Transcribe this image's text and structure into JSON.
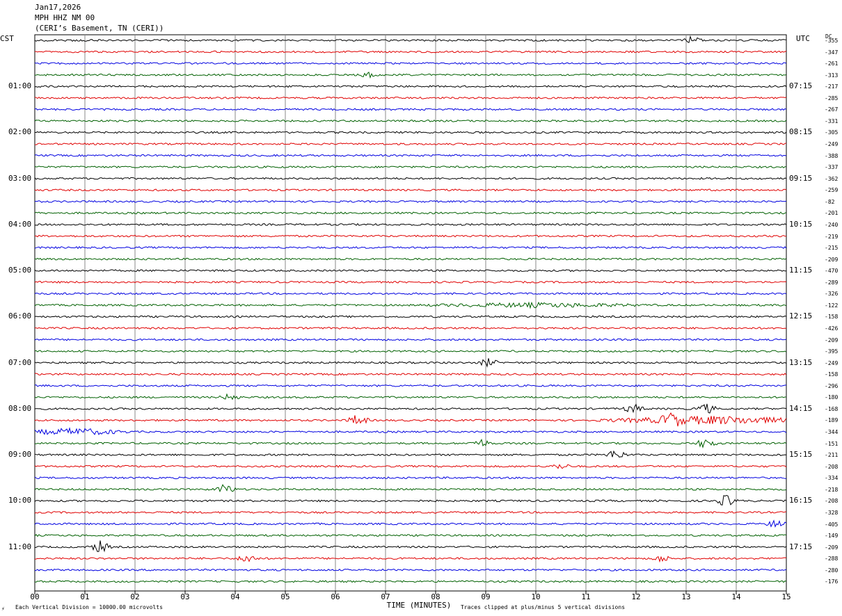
{
  "header": {
    "date": "Jan17,2026",
    "station": "MPH HHZ NM 00",
    "location": "(CERI’s Basement, TN (CERI))"
  },
  "left_tz": "CST",
  "right_tz": "UTC",
  "dc_label": "DC",
  "footer": {
    "scale_note": "Each Vertical Division = 10000.00 microvolts",
    "clip_note": "Traces clipped at plus/minus 5 vertical divisions",
    "corner_mark": "⚡"
  },
  "chart_data": {
    "type": "line",
    "title": "MPH HHZ NM 00",
    "xlabel": "TIME (MINUTES)",
    "x_ticks": [
      "00",
      "01",
      "02",
      "03",
      "04",
      "05",
      "06",
      "07",
      "08",
      "09",
      "10",
      "11",
      "12",
      "13",
      "14",
      "15"
    ],
    "xlim": [
      0,
      15
    ],
    "trace_colors": [
      "#000000",
      "#e00000",
      "#0000e0",
      "#006000"
    ],
    "left_hour_labels": [
      "01:00",
      "02:00",
      "03:00",
      "04:00",
      "05:00",
      "06:00",
      "07:00",
      "08:00",
      "09:00",
      "10:00",
      "11:00"
    ],
    "right_hour_labels": [
      "07:15",
      "08:15",
      "09:15",
      "10:15",
      "11:15",
      "12:15",
      "13:15",
      "14:15",
      "15:15",
      "16:15",
      "17:15"
    ],
    "dc_offsets": [
      -355,
      -347,
      -261,
      -313,
      -217,
      -285,
      -267,
      -331,
      -305,
      -249,
      -388,
      -337,
      -362,
      -259,
      -82,
      -201,
      -240,
      -219,
      -215,
      -209,
      -470,
      -289,
      -326,
      -122,
      -158,
      -426,
      -209,
      -395,
      -249,
      -158,
      -296,
      -180,
      -168,
      -189,
      -344,
      -151,
      -211,
      -208,
      -334,
      -218,
      -208,
      -328,
      -405,
      -149,
      -209,
      -288,
      -280,
      -176
    ],
    "events": [
      {
        "row": 0,
        "minute": 13.1,
        "amp": 0.5
      },
      {
        "row": 3,
        "minute": 6.7,
        "amp": 0.4
      },
      {
        "row": 23,
        "minute": 10.0,
        "amp": 0.3,
        "width": 2.5
      },
      {
        "row": 28,
        "minute": 9.05,
        "amp": 0.6
      },
      {
        "row": 31,
        "minute": 3.9,
        "amp": 0.5
      },
      {
        "row": 32,
        "minute": 11.95,
        "amp": 0.7
      },
      {
        "row": 32,
        "minute": 13.4,
        "amp": 0.8
      },
      {
        "row": 33,
        "minute": 6.45,
        "amp": 0.9
      },
      {
        "row": 33,
        "minute": 12.7,
        "amp": 0.9
      },
      {
        "row": 33,
        "minute": 13.5,
        "amp": 0.6,
        "width": 2.5
      },
      {
        "row": 34,
        "minute": 0.8,
        "amp": 0.5,
        "width": 1.2
      },
      {
        "row": 35,
        "minute": 8.9,
        "amp": 0.6
      },
      {
        "row": 35,
        "minute": 13.4,
        "amp": 0.8
      },
      {
        "row": 36,
        "minute": 11.6,
        "amp": 0.8
      },
      {
        "row": 37,
        "minute": 10.5,
        "amp": 0.4
      },
      {
        "row": 39,
        "minute": 3.8,
        "amp": 0.8
      },
      {
        "row": 40,
        "minute": 13.8,
        "amp": 0.9
      },
      {
        "row": 42,
        "minute": 14.8,
        "amp": 0.6
      },
      {
        "row": 44,
        "minute": 1.3,
        "amp": 0.9
      },
      {
        "row": 45,
        "minute": 4.25,
        "amp": 0.7
      },
      {
        "row": 45,
        "minute": 12.5,
        "amp": 0.5
      }
    ]
  }
}
